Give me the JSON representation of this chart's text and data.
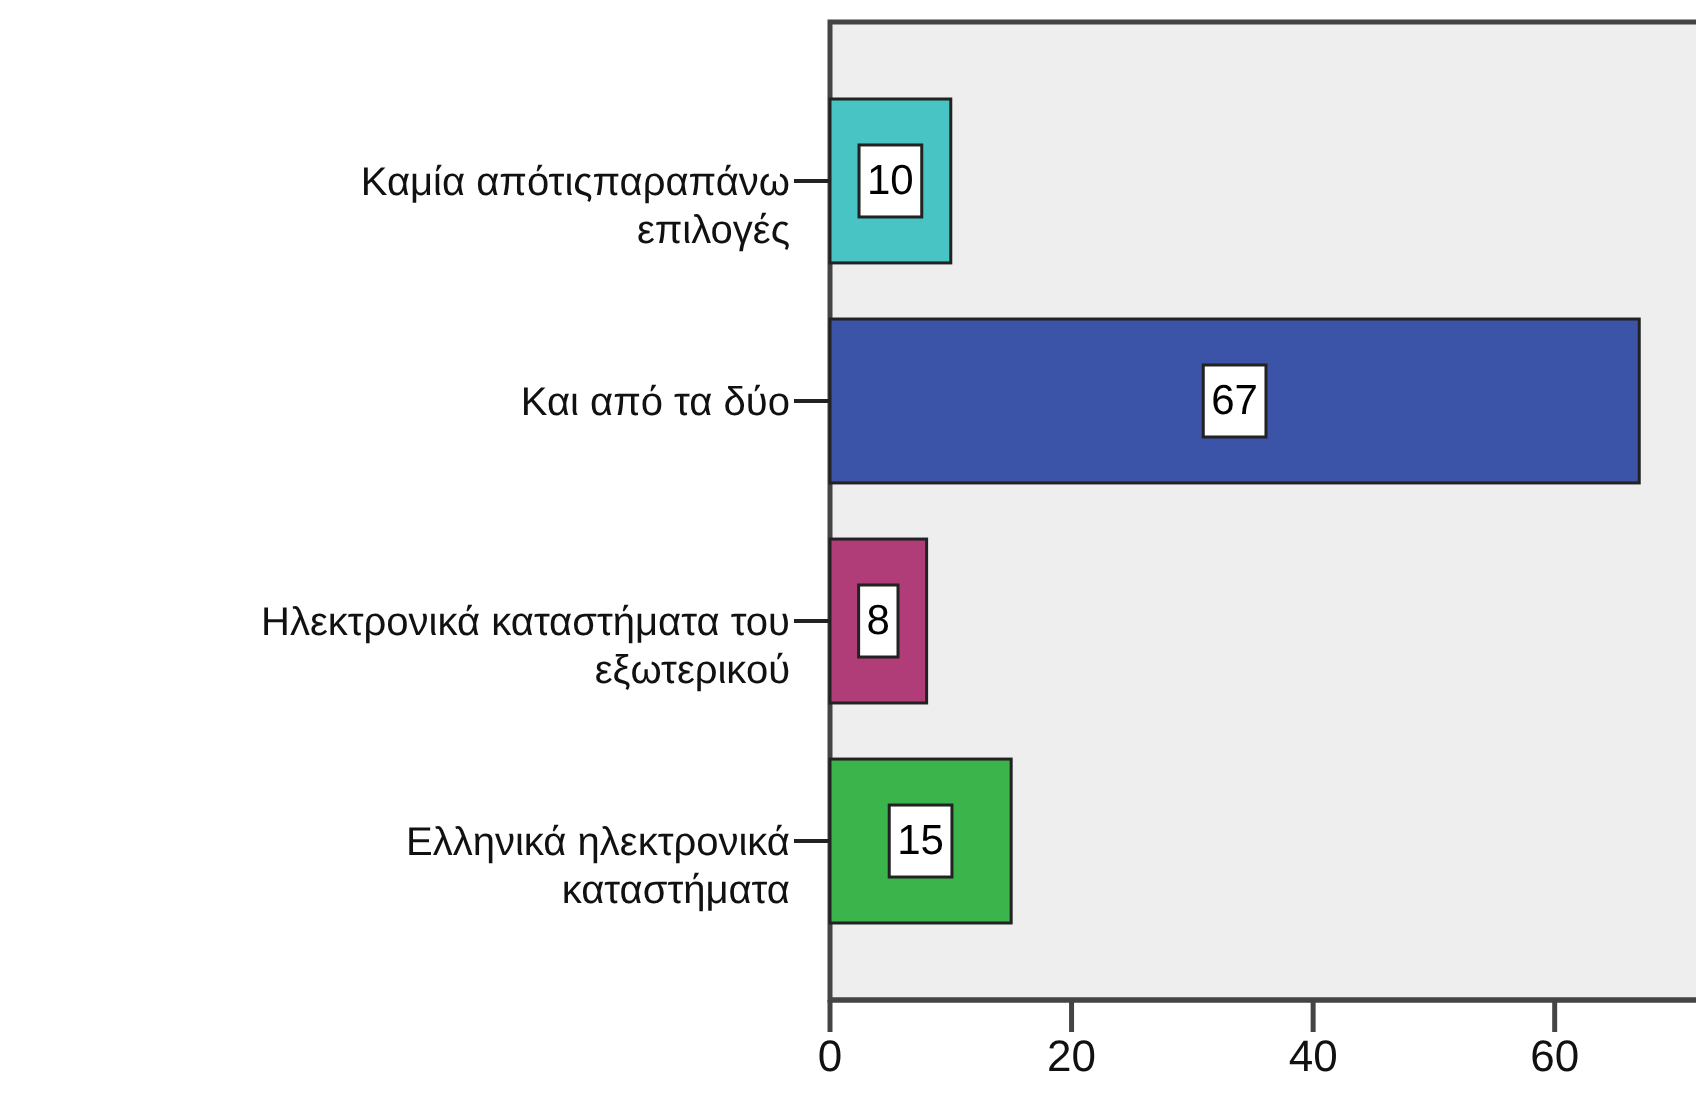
{
  "chart_data": {
    "type": "bar",
    "orientation": "horizontal",
    "categories": [
      "Καμία απότιςπαραπάνω\nεπιλογές",
      "Και από τα δύο",
      "Ηλεκτρονικά καταστήματα του\nεξωτερικού",
      "Ελληνικά ηλεκτρονικά\nκαταστήματα"
    ],
    "values": [
      10,
      67,
      8,
      15
    ],
    "colors": [
      "#48c4c4",
      "#3c54a8",
      "#b03c78",
      "#3cb44c"
    ],
    "xlim": [
      0,
      71.7
    ],
    "xticks": [
      0,
      20,
      40,
      60
    ],
    "data_labels": true,
    "grid": false
  }
}
